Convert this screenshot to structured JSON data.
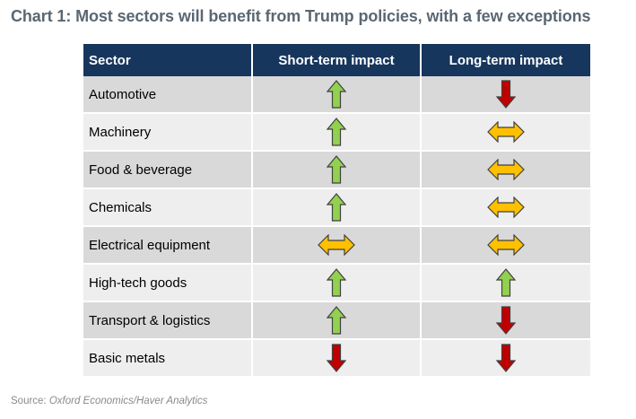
{
  "title": "Chart 1: Most sectors will benefit from Trump policies, with a few exceptions",
  "source_prefix": "Source: ",
  "source_text": "Oxford Economics/Haver Analytics",
  "colors": {
    "header_bg": "#17365d",
    "up": "#92d050",
    "down": "#c00000",
    "both": "#ffc000"
  },
  "chart_data": {
    "type": "table",
    "columns": [
      "Sector",
      "Short-term impact",
      "Long-term impact"
    ],
    "rows": [
      {
        "sector": "Automotive",
        "short": "up",
        "long": "down"
      },
      {
        "sector": "Machinery",
        "short": "up",
        "long": "both"
      },
      {
        "sector": "Food & beverage",
        "short": "up",
        "long": "both"
      },
      {
        "sector": "Chemicals",
        "short": "up",
        "long": "both"
      },
      {
        "sector": "Electrical equipment",
        "short": "both",
        "long": "both"
      },
      {
        "sector": "High-tech goods",
        "short": "up",
        "long": "up"
      },
      {
        "sector": "Transport & logistics",
        "short": "up",
        "long": "down"
      },
      {
        "sector": "Basic metals",
        "short": "down",
        "long": "down"
      }
    ]
  }
}
